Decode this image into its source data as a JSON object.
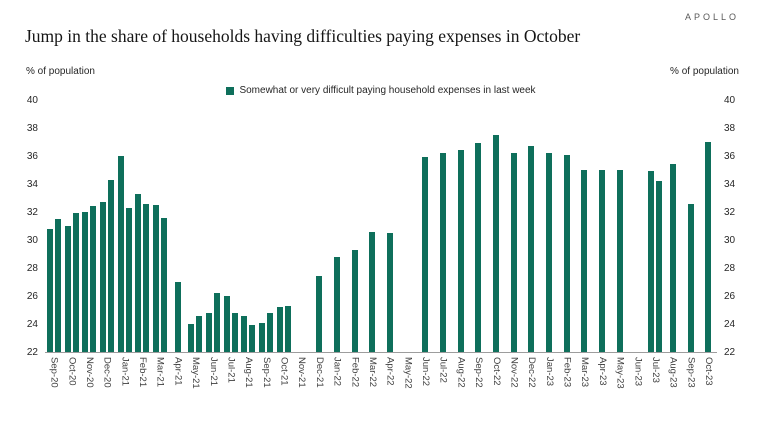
{
  "header": {
    "brand": "APOLLO",
    "title": "Jump in the share of households having difficulties paying expenses in October"
  },
  "axes": {
    "left_axis_title": "% of population",
    "right_axis_title": "% of population"
  },
  "legend": {
    "label": "Somewhat or very difficult paying household expenses in last week"
  },
  "colors": {
    "bar_green": "#0e6f5b"
  },
  "chart_data": {
    "type": "bar",
    "title": "Jump in the share of households having difficulties paying expenses in October",
    "ylabel": "% of population",
    "legend": "Somewhat or very difficult paying household expenses in last week",
    "ylim": [
      22,
      40
    ],
    "ytick_step": 2,
    "yticks": [
      22,
      24,
      26,
      28,
      30,
      32,
      34,
      36,
      38,
      40
    ],
    "grid": false,
    "legend_position": "top-center",
    "months": [
      {
        "label": "Sep-20",
        "values": [
          30.8,
          31.5
        ]
      },
      {
        "label": "Oct-20",
        "values": [
          31.0,
          31.9
        ]
      },
      {
        "label": "Nov-20",
        "values": [
          32.0,
          32.4
        ]
      },
      {
        "label": "Dec-20",
        "values": [
          32.7,
          34.3
        ]
      },
      {
        "label": "Jan-21",
        "values": [
          36.0,
          32.3
        ]
      },
      {
        "label": "Feb-21",
        "values": [
          33.3,
          32.6
        ]
      },
      {
        "label": "Mar-21",
        "values": [
          32.5,
          31.6
        ]
      },
      {
        "label": "Apr-21",
        "values": [
          27.0
        ]
      },
      {
        "label": "May-21",
        "values": [
          24.0,
          24.6
        ]
      },
      {
        "label": "Jun-21",
        "values": [
          24.8,
          26.2
        ]
      },
      {
        "label": "Jul-21",
        "values": [
          26.0,
          24.8
        ]
      },
      {
        "label": "Aug-21",
        "values": [
          24.6,
          23.9
        ]
      },
      {
        "label": "Sep-21",
        "values": [
          24.1,
          24.8
        ]
      },
      {
        "label": "Oct-21",
        "values": [
          25.2,
          25.3
        ]
      },
      {
        "label": "Nov-21",
        "values": []
      },
      {
        "label": "Dec-21",
        "values": [
          27.4
        ]
      },
      {
        "label": "Jan-22",
        "values": [
          28.8
        ]
      },
      {
        "label": "Feb-22",
        "values": [
          29.3
        ]
      },
      {
        "label": "Mar-22",
        "values": [
          30.6
        ]
      },
      {
        "label": "Apr-22",
        "values": [
          30.5
        ]
      },
      {
        "label": "May-22",
        "values": []
      },
      {
        "label": "Jun-22",
        "values": [
          35.9
        ]
      },
      {
        "label": "Jul-22",
        "values": [
          36.2
        ]
      },
      {
        "label": "Aug-22",
        "values": [
          36.4
        ]
      },
      {
        "label": "Sep-22",
        "values": [
          36.9
        ]
      },
      {
        "label": "Oct-22",
        "values": [
          37.5
        ]
      },
      {
        "label": "Nov-22",
        "values": [
          36.2
        ]
      },
      {
        "label": "Dec-22",
        "values": [
          36.7
        ]
      },
      {
        "label": "Jan-23",
        "values": [
          36.2
        ]
      },
      {
        "label": "Feb-23",
        "values": [
          36.1
        ]
      },
      {
        "label": "Mar-23",
        "values": [
          35.0
        ]
      },
      {
        "label": "Apr-23",
        "values": [
          35.0
        ]
      },
      {
        "label": "May-23",
        "values": [
          35.0
        ]
      },
      {
        "label": "Jun-23",
        "values": []
      },
      {
        "label": "Jul-23",
        "values": [
          34.9,
          34.2
        ]
      },
      {
        "label": "Aug-23",
        "values": [
          35.4
        ]
      },
      {
        "label": "Sep-23",
        "values": [
          32.6
        ]
      },
      {
        "label": "Oct-23",
        "values": [
          37.0
        ]
      }
    ]
  }
}
